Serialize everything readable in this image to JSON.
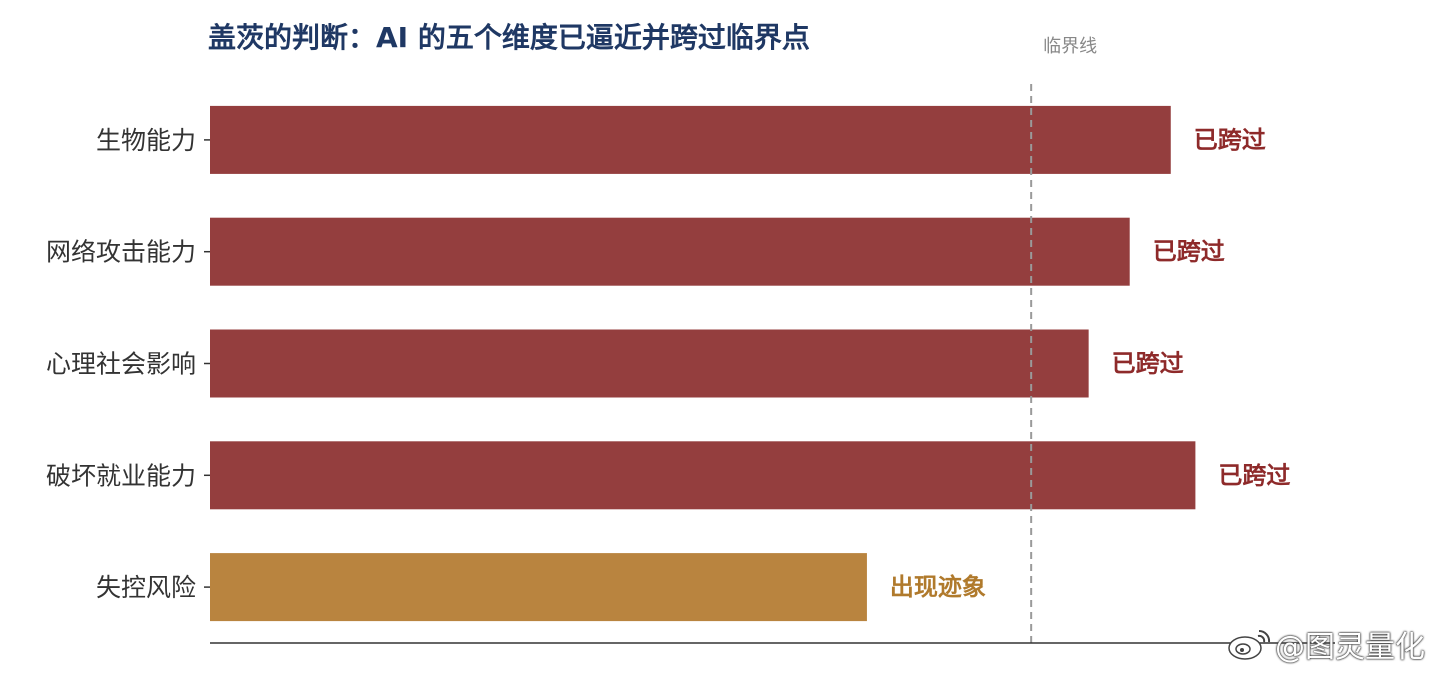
{
  "chart_data": {
    "type": "bar",
    "orientation": "horizontal",
    "title": "盖茨的判断：AI 的五个维度已逼近并跨过临界点",
    "categories": [
      "生物能力",
      "网络攻击能力",
      "心理社会影响",
      "破坏就业能力",
      "失控风险"
    ],
    "values": [
      1.17,
      1.12,
      1.07,
      1.2,
      0.8
    ],
    "value_labels": [
      "已跨过",
      "已跨过",
      "已跨过",
      "已跨过",
      "出现迹象"
    ],
    "bar_colors": [
      "#943e3e",
      "#943e3e",
      "#943e3e",
      "#943e3e",
      "#b9843f"
    ],
    "label_colors": [
      "#8e2a2a",
      "#8e2a2a",
      "#8e2a2a",
      "#8e2a2a",
      "#b07a2c"
    ],
    "threshold": {
      "value": 1.0,
      "label": "临界线",
      "style": "dashed",
      "color": "#9a9a9a"
    },
    "xlim": [
      0,
      1.37
    ],
    "xlabel": "",
    "ylabel": "",
    "grid": false,
    "legend": "none"
  },
  "watermark": {
    "text": "@图灵量化",
    "icon": "weibo-icon"
  }
}
